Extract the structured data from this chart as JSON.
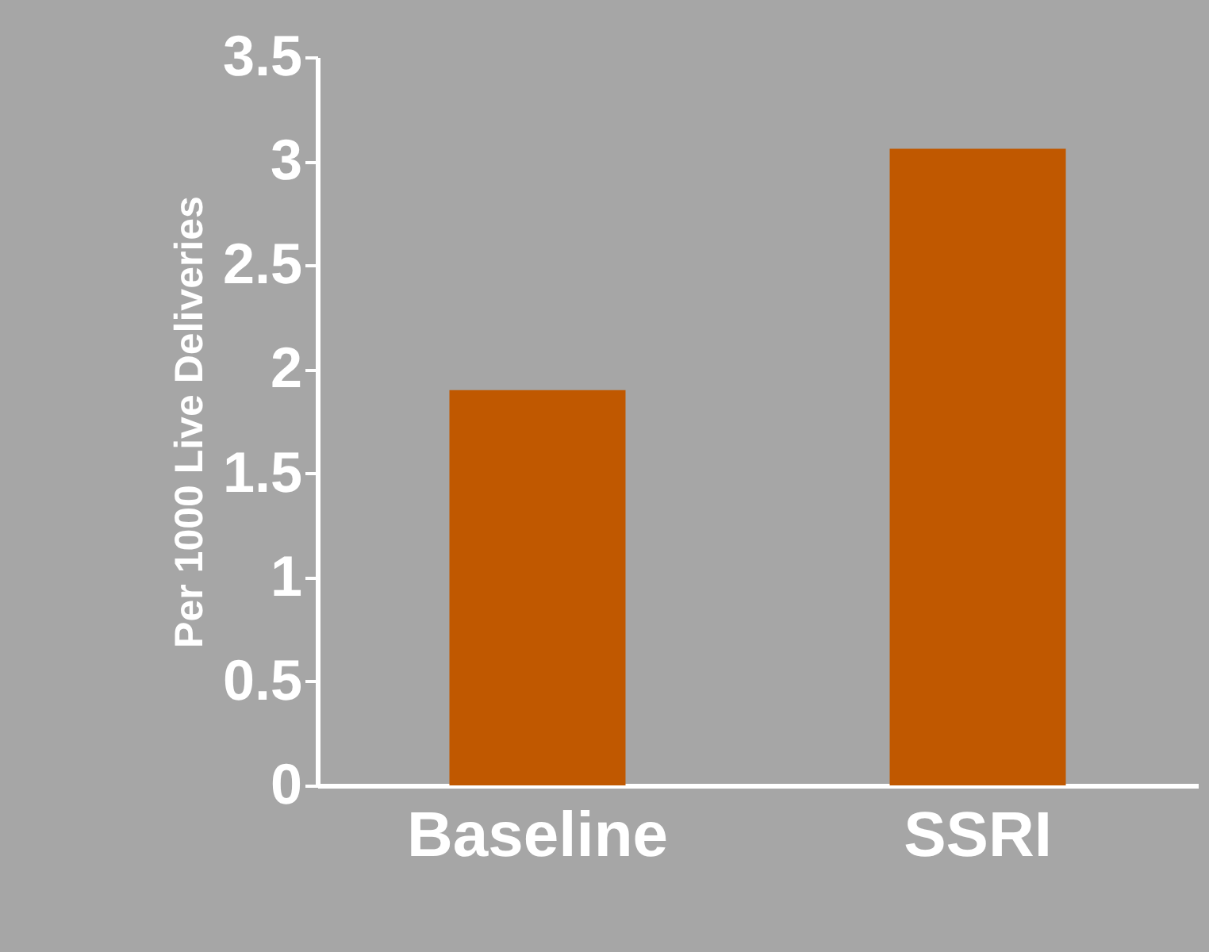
{
  "chart_data": {
    "type": "bar",
    "ylabel": "Per 1000 Live Deliveries",
    "categories": [
      "Baseline",
      "SSRI"
    ],
    "values": [
      1.9,
      3.06
    ],
    "color": "#c05800",
    "ylim": [
      0,
      3.5
    ],
    "yticks": [
      0,
      0.5,
      1,
      1.5,
      2,
      2.5,
      3,
      3.5
    ],
    "grid": false
  }
}
